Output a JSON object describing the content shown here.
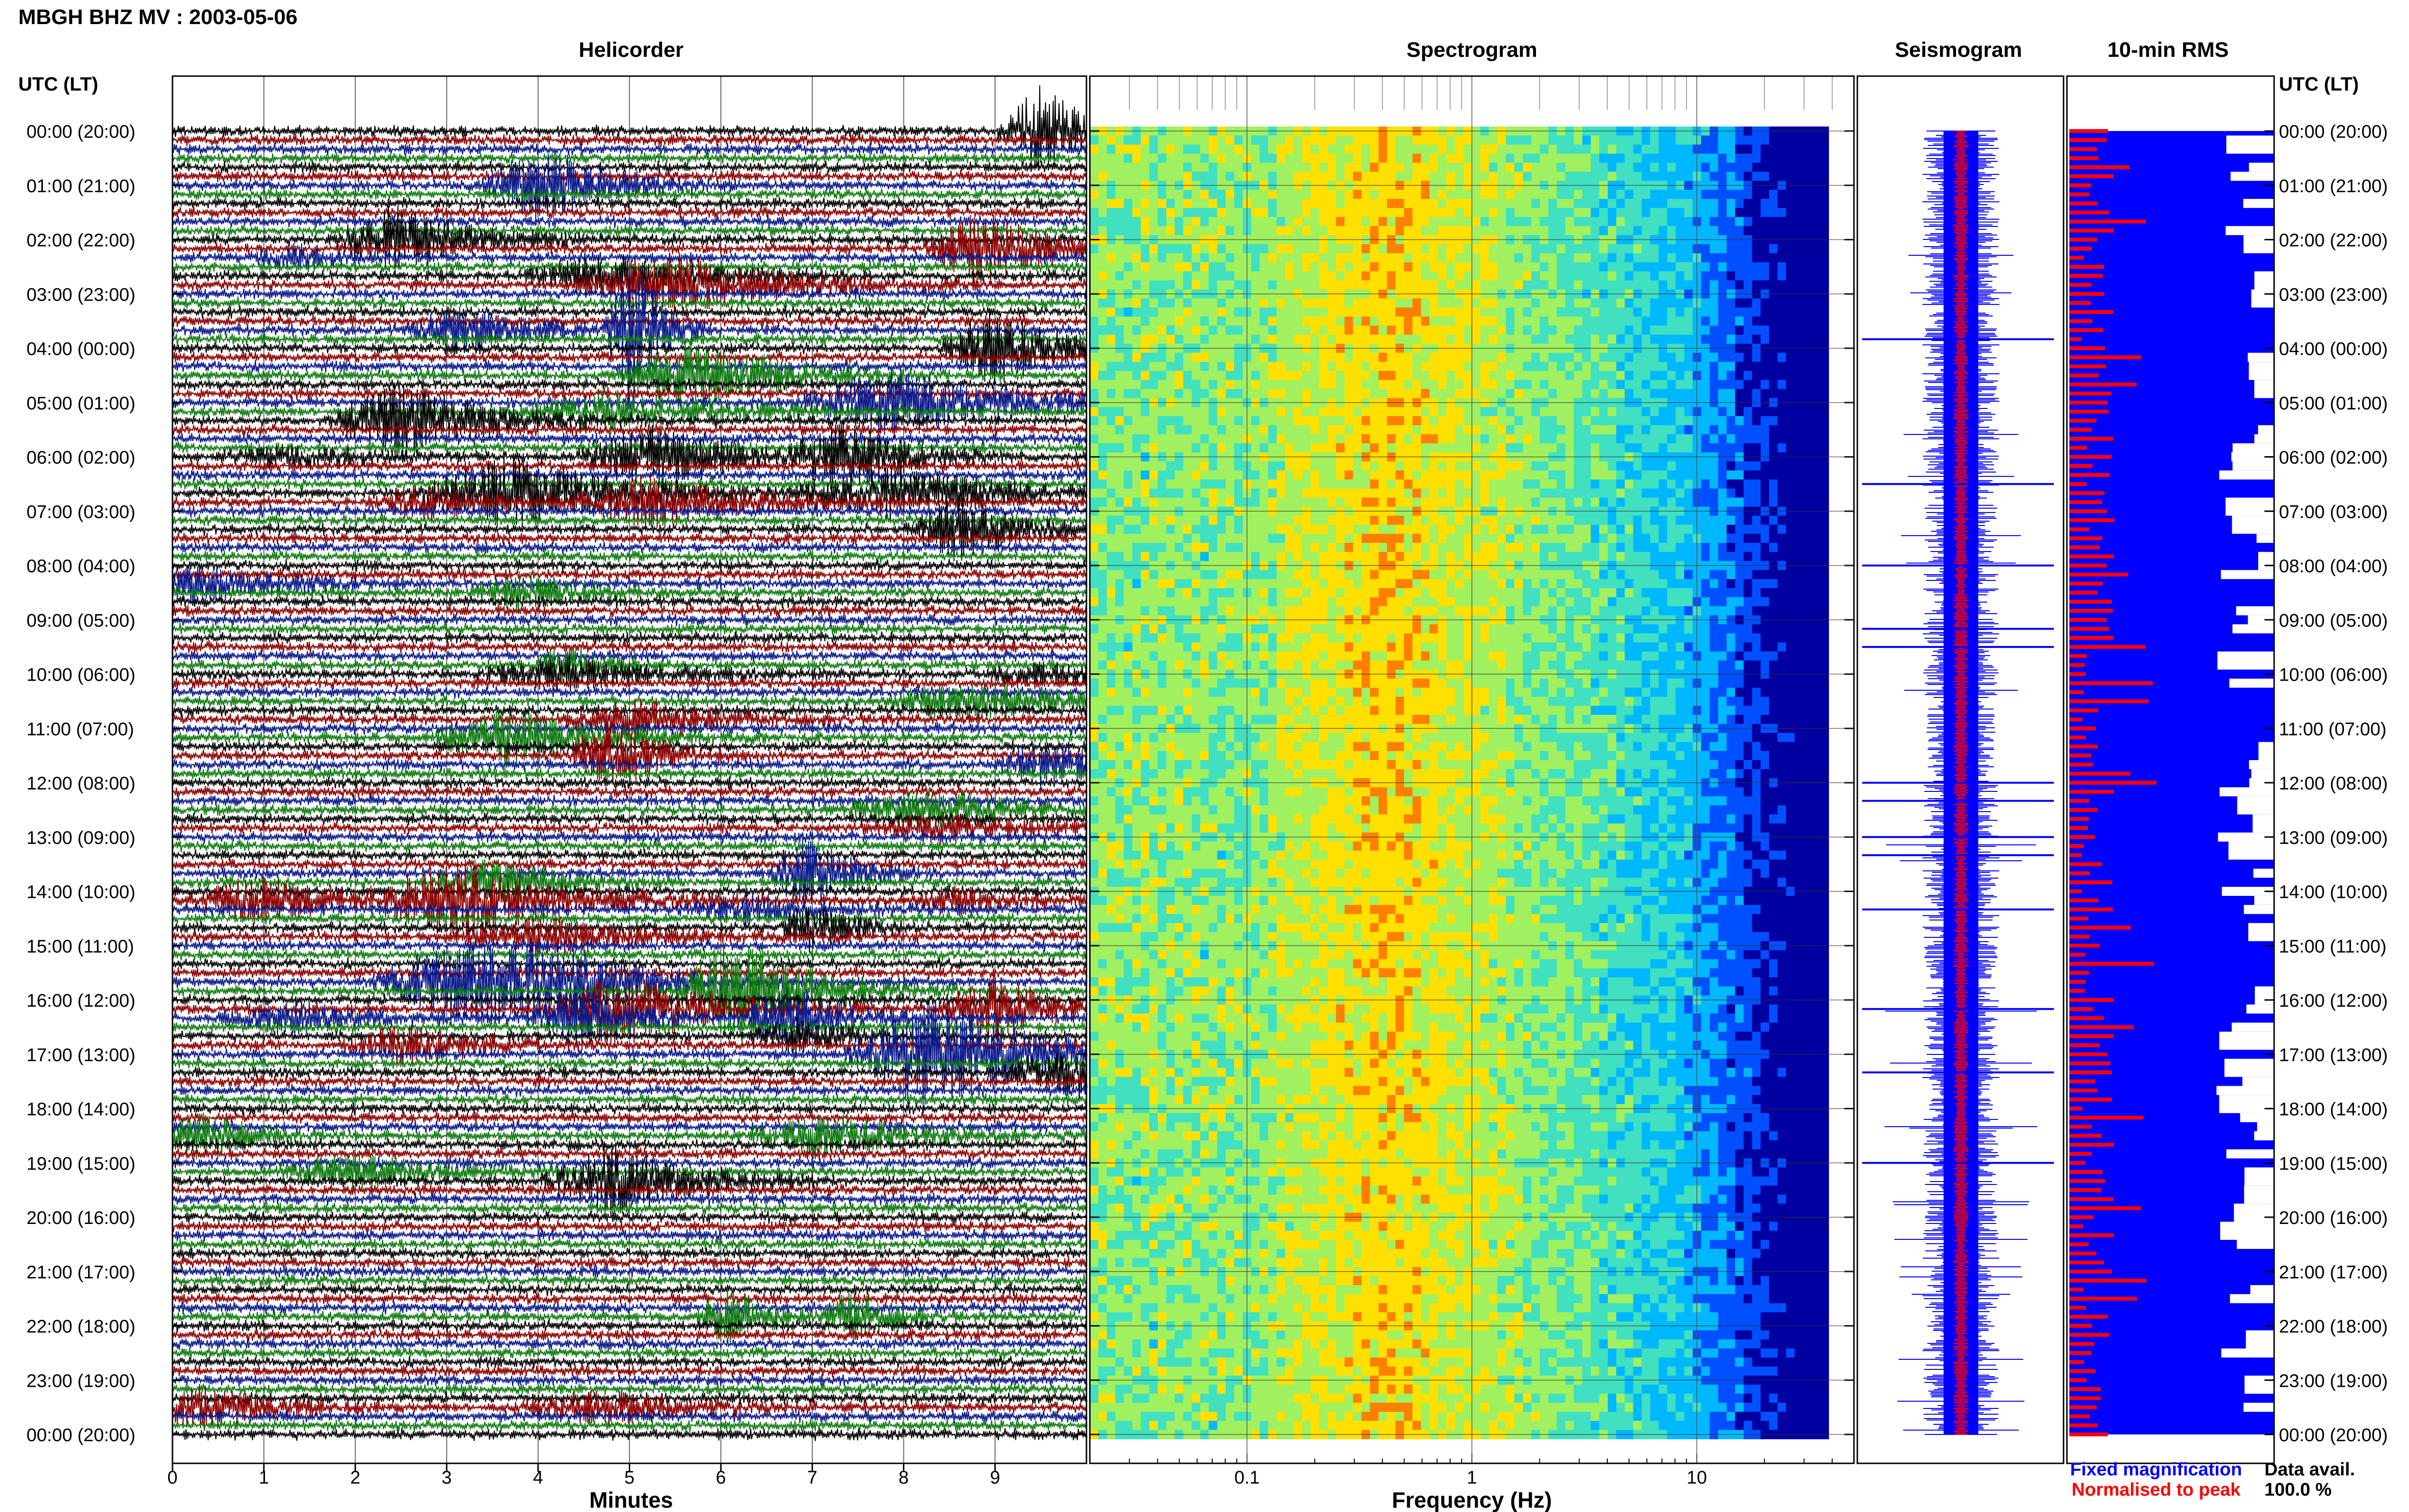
{
  "page": {
    "main_title": "MBGH BHZ MV : 2003-05-06"
  },
  "panels": {
    "helicorder_title": "Helicorder",
    "spectrogram_title": "Spectrogram",
    "seismogram_title": "Seismogram",
    "rms_title": "10-min RMS",
    "time_axis_left_label": "UTC (LT)",
    "time_axis_right_label": "UTC (LT)",
    "helicorder_xlabel": "Minutes",
    "spectrogram_xlabel": "Frequency (Hz)"
  },
  "legend": {
    "fixed_magnification": "Fixed magnification",
    "normalised_to_peak": "Normalised to peak",
    "data_avail_label": "Data avail.",
    "data_avail_value": "100.0 %"
  },
  "colors": {
    "helicorder_traces": [
      "#000000",
      "#8b0000",
      "#0a1a8a",
      "#0f7a10"
    ],
    "seismogram_fixed": "#0000ff",
    "seismogram_normalised": "#ff0000",
    "rms_area": "#0000ff",
    "rms_bars": "#ff0000",
    "legend_fixed": "#0000ff",
    "legend_normalised": "#ff0000"
  },
  "chart_data": [
    {
      "type": "line",
      "name": "helicorder",
      "x": [
        0,
        1,
        2,
        3,
        4,
        5,
        6,
        7,
        8,
        9
      ],
      "xlabel": "Minutes",
      "xlim": [
        0,
        10
      ],
      "time_labels": [
        "00:00 (20:00)",
        "01:00 (21:00)",
        "02:00 (22:00)",
        "03:00 (23:00)",
        "04:00 (00:00)",
        "05:00 (01:00)",
        "06:00 (02:00)",
        "07:00 (03:00)",
        "08:00 (04:00)",
        "09:00 (05:00)",
        "10:00 (06:00)",
        "11:00 (07:00)",
        "12:00 (08:00)",
        "13:00 (09:00)",
        "14:00 (10:00)",
        "15:00 (11:00)",
        "16:00 (12:00)",
        "17:00 (13:00)",
        "18:00 (14:00)",
        "19:00 (15:00)",
        "20:00 (16:00)",
        "21:00 (17:00)",
        "22:00 (18:00)",
        "23:00 (19:00)",
        "00:00 (20:00)"
      ],
      "rows": 145,
      "row_duration_minutes": 10
    },
    {
      "type": "heatmap",
      "name": "spectrogram",
      "xlabel": "Frequency (Hz)",
      "x_scale": "log",
      "xlim": [
        0.02,
        50
      ],
      "x_tick_labels": [
        "0.1",
        "1",
        "10"
      ],
      "colormap": [
        "#0000a0",
        "#0050ff",
        "#00b8ff",
        "#40e0c0",
        "#a0f060",
        "#ffe000",
        "#ff8000",
        "#d00000"
      ]
    },
    {
      "type": "line",
      "name": "seismogram",
      "series": [
        {
          "name": "Fixed magnification",
          "color": "#0000ff"
        },
        {
          "name": "Normalised to peak",
          "color": "#ff0000"
        }
      ]
    },
    {
      "type": "bar",
      "name": "10-min RMS",
      "rows": 145
    }
  ]
}
